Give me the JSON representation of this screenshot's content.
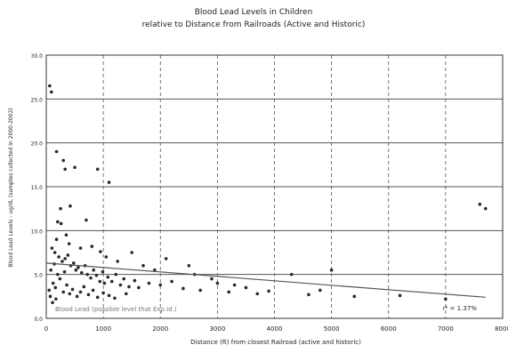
{
  "chart_data": {
    "type": "scatter",
    "title": "Blood Lead Levels in Children",
    "subtitle": "relative to Distance from Railroads (Active and Historic)",
    "xlabel": "Distance (ft) from closest Railroad (active and historic)",
    "ylabel": "Blood Lead Levels - ug/dL (samples collected in 2000-2002)",
    "xlim": [
      0,
      8000
    ],
    "ylim": [
      0,
      30
    ],
    "x_ticks": [
      0,
      1000,
      2000,
      3000,
      4000,
      5000,
      6000,
      7000,
      8000
    ],
    "x_tick_labels": [
      "0",
      "1000",
      "2000",
      "3000",
      "4000",
      "5000",
      "6000",
      "7000",
      "8000"
    ],
    "y_ticks": [
      0,
      5,
      10,
      15,
      20,
      25,
      30
    ],
    "y_tick_labels": [
      "0.0",
      "5.0",
      "10.0",
      "15.0",
      "20.0",
      "25.0",
      "30.0"
    ],
    "grid": true,
    "annotation": "Blood Lead (possible level that Exp.Id.)",
    "r_squared_label": "r² = 1.37%",
    "trendline": {
      "x": [
        0,
        7700
      ],
      "y": [
        6.3,
        2.4
      ]
    },
    "points": [
      [
        60,
        26.5
      ],
      [
        90,
        25.8
      ],
      [
        180,
        19.0
      ],
      [
        300,
        18.0
      ],
      [
        330,
        17.0
      ],
      [
        500,
        17.2
      ],
      [
        900,
        17.0
      ],
      [
        1100,
        15.5
      ],
      [
        250,
        12.5
      ],
      [
        200,
        11.0
      ],
      [
        260,
        10.8
      ],
      [
        350,
        9.5
      ],
      [
        420,
        12.8
      ],
      [
        700,
        11.2
      ],
      [
        180,
        9.0
      ],
      [
        400,
        8.5
      ],
      [
        600,
        8.0
      ],
      [
        800,
        8.2
      ],
      [
        950,
        7.6
      ],
      [
        1050,
        7.0
      ],
      [
        1250,
        6.5
      ],
      [
        1500,
        7.5
      ],
      [
        1700,
        6.0
      ],
      [
        1900,
        5.5
      ],
      [
        2100,
        6.8
      ],
      [
        2500,
        6.0
      ],
      [
        2600,
        5.0
      ],
      [
        2900,
        4.5
      ],
      [
        3300,
        3.8
      ],
      [
        3500,
        3.5
      ],
      [
        4300,
        5.0
      ],
      [
        5000,
        5.5
      ],
      [
        7600,
        13.0
      ],
      [
        7700,
        12.5
      ],
      [
        7000,
        2.2
      ],
      [
        100,
        8.0
      ],
      [
        150,
        7.5
      ],
      [
        220,
        7.0
      ],
      [
        280,
        6.5
      ],
      [
        330,
        6.8
      ],
      [
        380,
        7.2
      ],
      [
        430,
        6.0
      ],
      [
        480,
        6.3
      ],
      [
        520,
        5.5
      ],
      [
        560,
        5.8
      ],
      [
        620,
        5.2
      ],
      [
        680,
        6.0
      ],
      [
        720,
        5.0
      ],
      [
        780,
        4.6
      ],
      [
        830,
        5.5
      ],
      [
        880,
        4.9
      ],
      [
        940,
        4.2
      ],
      [
        990,
        5.3
      ],
      [
        1020,
        4.0
      ],
      [
        1080,
        4.7
      ],
      [
        1150,
        4.2
      ],
      [
        1220,
        5.0
      ],
      [
        1300,
        3.8
      ],
      [
        1360,
        4.5
      ],
      [
        1450,
        3.6
      ],
      [
        1550,
        4.3
      ],
      [
        1620,
        3.5
      ],
      [
        1800,
        4.0
      ],
      [
        2000,
        3.8
      ],
      [
        2200,
        4.2
      ],
      [
        2400,
        3.4
      ],
      [
        2700,
        3.2
      ],
      [
        3000,
        4.0
      ],
      [
        3200,
        3.0
      ],
      [
        3700,
        2.8
      ],
      [
        3900,
        3.1
      ],
      [
        4600,
        2.7
      ],
      [
        4800,
        3.2
      ],
      [
        5400,
        2.5
      ],
      [
        6200,
        2.6
      ],
      [
        120,
        4.0
      ],
      [
        160,
        3.5
      ],
      [
        240,
        4.5
      ],
      [
        300,
        3.0
      ],
      [
        360,
        3.8
      ],
      [
        410,
        2.8
      ],
      [
        460,
        3.3
      ],
      [
        540,
        2.5
      ],
      [
        600,
        3.0
      ],
      [
        660,
        3.6
      ],
      [
        740,
        2.7
      ],
      [
        820,
        3.2
      ],
      [
        900,
        2.4
      ],
      [
        1000,
        2.9
      ],
      [
        1100,
        2.6
      ],
      [
        1200,
        2.3
      ],
      [
        1400,
        2.8
      ],
      [
        80,
        5.5
      ],
      [
        140,
        6.2
      ],
      [
        200,
        5.0
      ],
      [
        320,
        5.3
      ],
      [
        50,
        3.2
      ],
      [
        70,
        2.5
      ],
      [
        110,
        1.8
      ],
      [
        170,
        2.2
      ]
    ]
  },
  "colors": {
    "grid": "#555555",
    "axis": "#333333",
    "point": "#2a2a2a",
    "trend": "#555555",
    "text": "#222222"
  }
}
